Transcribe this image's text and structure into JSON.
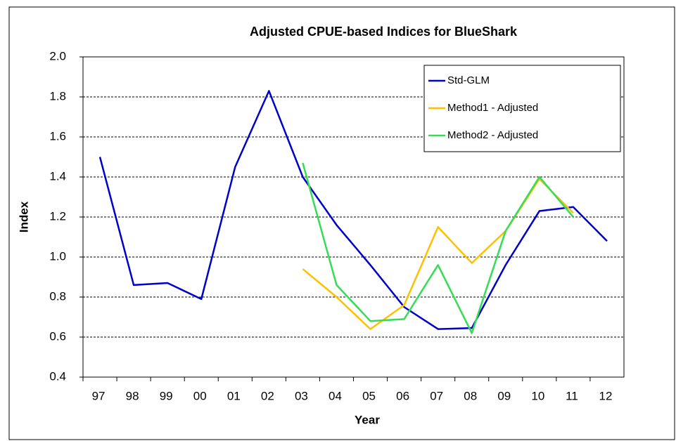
{
  "chart_data": {
    "type": "line",
    "title": "Adjusted CPUE-based Indices for BlueShark",
    "x_label": "Year",
    "y_label": "Index",
    "categories": [
      "97",
      "98",
      "99",
      "00",
      "01",
      "02",
      "03",
      "04",
      "05",
      "06",
      "07",
      "08",
      "09",
      "10",
      "11",
      "12"
    ],
    "series": [
      {
        "name": "Std-GLM",
        "color": "#0000cc",
        "values": [
          1.5,
          0.86,
          0.87,
          0.79,
          1.45,
          1.83,
          1.4,
          1.16,
          0.96,
          0.75,
          0.64,
          0.645,
          0.96,
          1.23,
          1.25,
          1.08
        ]
      },
      {
        "name": "Method1 - Adjusted",
        "color": "#ffc000",
        "values": [
          null,
          null,
          null,
          null,
          null,
          null,
          0.94,
          0.8,
          0.64,
          0.76,
          1.15,
          0.97,
          1.13,
          1.39,
          1.22,
          null
        ]
      },
      {
        "name": "Method2 - Adjusted",
        "color": "#33dd55",
        "values": [
          null,
          null,
          null,
          null,
          null,
          null,
          1.47,
          0.86,
          0.68,
          0.69,
          0.96,
          0.62,
          1.13,
          1.4,
          1.2,
          null
        ]
      }
    ],
    "ylim": [
      0.4,
      2.0
    ],
    "yticks": [
      0.4,
      0.6,
      0.8,
      {
        "value": 1.0,
        "label": "1.0"
      },
      1.2,
      1.4,
      1.6,
      1.8,
      {
        "value": 2.0,
        "label": "2.0"
      }
    ],
    "grid": true,
    "legend": "top-right"
  }
}
